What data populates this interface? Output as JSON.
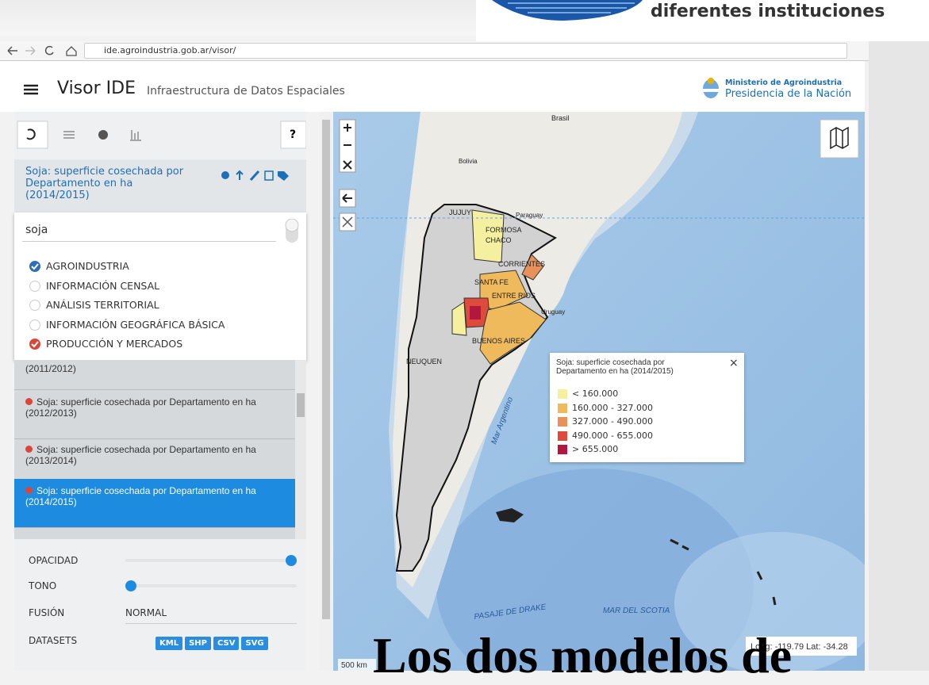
{
  "slide": {
    "caption": "diferentes instituciones",
    "overlay_title": "Los dos modelos de"
  },
  "browser": {
    "url": "ide.agroindustria.gob.ar/visor/"
  },
  "header": {
    "title": "Visor IDE",
    "subtitle": "Infraestructura de Datos Espaciales",
    "ministry": "Ministerio de Agroindustria",
    "presidency": "Presidencia de la Nación"
  },
  "sidebar": {
    "help": "?",
    "active_layer": "Soja: superficie cosechada por Departamento en ha (2014/2015)",
    "search": "soja",
    "categories": [
      {
        "label": "AGROINDUSTRIA",
        "checked": true,
        "color": "#2f6fb5"
      },
      {
        "label": "INFORMACIÓN CENSAL",
        "checked": false
      },
      {
        "label": "ANÁLISIS TERRITORIAL",
        "checked": false
      },
      {
        "label": "INFORMACIÓN GEOGRÁFICA BÁSICA",
        "checked": false
      },
      {
        "label": "PRODUCCIÓN Y MERCADOS",
        "checked": true,
        "color": "#d9473b"
      }
    ],
    "layers": [
      "(2011/2012)",
      "Soja: superficie cosechada por Departamento en ha (2012/2013)",
      "Soja: superficie cosechada por Departamento en ha (2013/2014)",
      "Soja: superficie cosechada por Departamento en ha (2014/2015)"
    ],
    "selected_layer": 3,
    "controls": {
      "opacity": "OPACIDAD",
      "tone": "TONO",
      "blend": "FUSIÓN",
      "blend_value": "NORMAL",
      "datasets": "DATASETS",
      "formats": [
        "KML",
        "SHP",
        "CSV",
        "SVG"
      ]
    }
  },
  "map": {
    "labels": [
      "Brasil",
      "Bolivia",
      "Paraguay",
      "Uruguay",
      "JUJUY",
      "FORMOSA",
      "CHACO",
      "CORRIENTES",
      "SANTA FE",
      "ENTRE RIOS",
      "BUENOS AIRES",
      "NEUQUEN",
      "Mar Argentino",
      "PASAJE DE DRAKE",
      "MAR DEL SCOTIA"
    ],
    "legend": {
      "title": "Soja: superficie cosechada por Departamento en ha (2014/2015)",
      "close": "×",
      "classes": [
        {
          "label": "< 160.000",
          "color": "#f4f0a0"
        },
        {
          "label": "160.000 - 327.000",
          "color": "#eeba5c"
        },
        {
          "label": "327.000 - 490.000",
          "color": "#e8915a"
        },
        {
          "label": "490.000 - 655.000",
          "color": "#dc4b3c"
        },
        {
          "label": "> 655.000",
          "color": "#b3163e"
        }
      ]
    },
    "scale": "500 km",
    "coordinates": "Long: -119.79 Lat: -34.28"
  }
}
